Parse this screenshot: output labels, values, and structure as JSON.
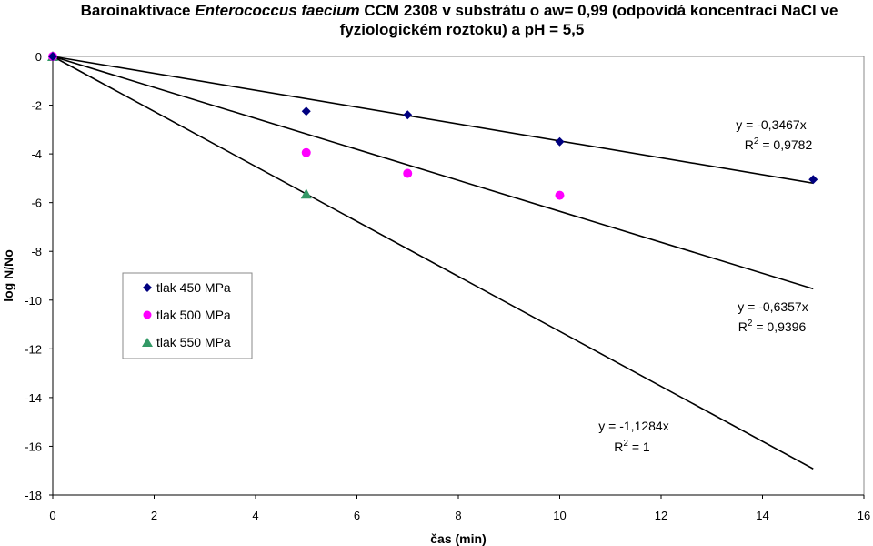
{
  "chart_data": {
    "type": "scatter",
    "title": {
      "part1": "Baroinaktivace ",
      "part2_italic": "Enterococcus faecium",
      "part3": " CCM 2308 v substrátu o aw= 0,99 (odpovídá koncentraci NaCl ve",
      "line2": "fyziologickém roztoku) a pH = 5,5"
    },
    "xlabel": "čas (min)",
    "ylabel": "log N/No",
    "xlim": [
      0,
      16
    ],
    "ylim": [
      -18,
      0
    ],
    "x_ticks": [
      0,
      2,
      4,
      6,
      8,
      10,
      12,
      14,
      16
    ],
    "y_ticks": [
      0,
      -2,
      -4,
      -6,
      -8,
      -10,
      -12,
      -14,
      -16,
      -18
    ],
    "grid": false,
    "legend_position": "left-middle",
    "series": [
      {
        "name": "tlak 450 MPa",
        "marker": "diamond",
        "color": "#000080",
        "points": [
          {
            "x": 0,
            "y": 0
          },
          {
            "x": 5,
            "y": -2.25
          },
          {
            "x": 7,
            "y": -2.4
          },
          {
            "x": 10,
            "y": -3.5
          },
          {
            "x": 15,
            "y": -5.05
          }
        ]
      },
      {
        "name": "tlak 500 MPa",
        "marker": "circle",
        "color": "#FF00FF",
        "points": [
          {
            "x": 0,
            "y": 0
          },
          {
            "x": 5,
            "y": -3.95
          },
          {
            "x": 7,
            "y": -4.8
          },
          {
            "x": 10,
            "y": -5.7
          }
        ]
      },
      {
        "name": "tlak 550 MPa",
        "marker": "triangle",
        "color": "#339966",
        "points": [
          {
            "x": 0,
            "y": 0
          },
          {
            "x": 5,
            "y": -5.65
          }
        ]
      }
    ],
    "trendlines": [
      {
        "slope": -0.3467,
        "x_end": 15,
        "color": "#000000"
      },
      {
        "slope": -0.6357,
        "x_end": 15,
        "color": "#000000"
      },
      {
        "slope": -1.1284,
        "x_end": 15,
        "color": "#000000"
      }
    ],
    "annotations": [
      {
        "equation": "y = -0,3467x",
        "r2_prefix": "R",
        "r2_sup": "2",
        "r2_value": " = 0,9782"
      },
      {
        "equation": "y = -0,6357x",
        "r2_prefix": "R",
        "r2_sup": "2",
        "r2_value": " = 0,9396"
      },
      {
        "equation": "y = -1,1284x",
        "r2_prefix": "R",
        "r2_sup": "2",
        "r2_value": " = 1"
      }
    ]
  }
}
